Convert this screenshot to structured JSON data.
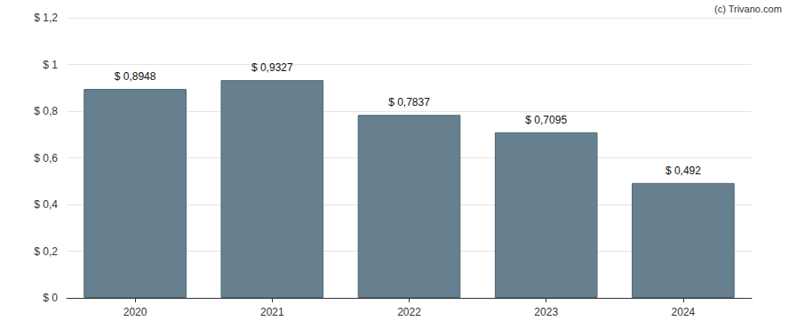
{
  "chart_data": {
    "type": "bar",
    "annotations": [
      "(c) Trivano.com"
    ],
    "categories": [
      "2020",
      "2021",
      "2022",
      "2023",
      "2024"
    ],
    "values": [
      0.8948,
      0.9327,
      0.7837,
      0.7095,
      0.492
    ],
    "value_labels": [
      "$ 0,8948",
      "$ 0,9327",
      "$ 0,7837",
      "$ 0,7095",
      "$ 0,492"
    ],
    "data_labels": true,
    "color": "#67808f",
    "ylim": [
      0,
      1.2
    ],
    "yticks": [
      {
        "value": 0,
        "label": "$ 0"
      },
      {
        "value": 0.2,
        "label": "$ 0,2"
      },
      {
        "value": 0.4,
        "label": "$ 0,4"
      },
      {
        "value": 0.6,
        "label": "$ 0,6"
      },
      {
        "value": 0.8,
        "label": "$ 0,8"
      },
      {
        "value": 1,
        "label": "$ 1"
      },
      {
        "value": 1.2,
        "label": "$ 1,2"
      }
    ],
    "grid": true
  }
}
